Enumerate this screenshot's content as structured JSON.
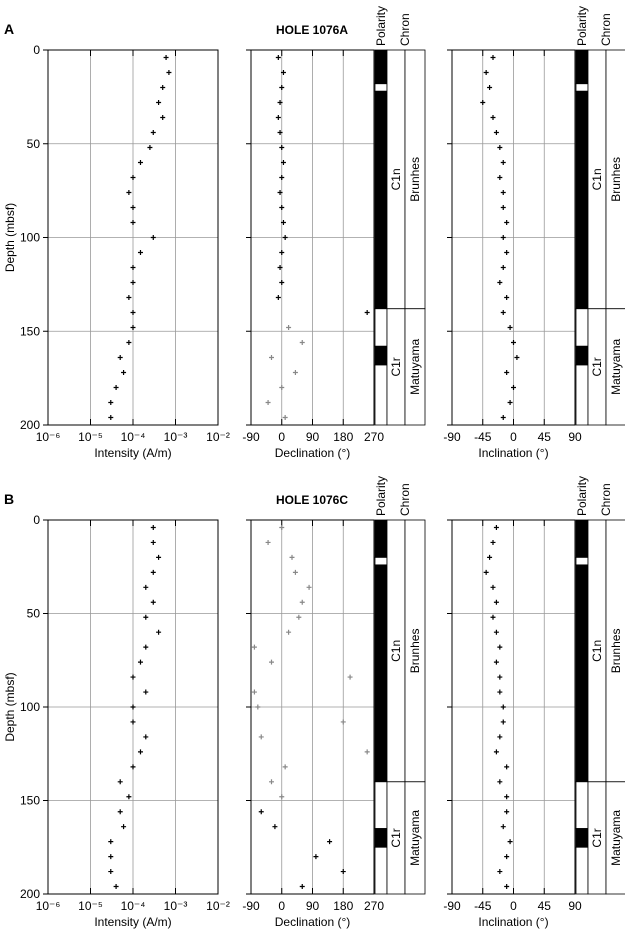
{
  "holes": [
    {
      "label": "A",
      "title": "HOLE 1076A",
      "column_headers": [
        "Polarity",
        "Chron"
      ],
      "polarity": [
        {
          "top": 0,
          "bottom": 18,
          "normal": true
        },
        {
          "top": 18,
          "bottom": 22,
          "normal": false
        },
        {
          "top": 22,
          "bottom": 138,
          "normal": true
        },
        {
          "top": 138,
          "bottom": 158,
          "normal": false
        },
        {
          "top": 158,
          "bottom": 168,
          "normal": true
        },
        {
          "top": 168,
          "bottom": 200,
          "normal": false
        }
      ],
      "chron": [
        {
          "top": 0,
          "bottom": 138,
          "chron": "C1n",
          "epoch": "Brunhes"
        },
        {
          "top": 138,
          "bottom": 200,
          "chron": "C1r",
          "epoch": "Matuyama"
        }
      ]
    },
    {
      "label": "B",
      "title": "HOLE 1076C",
      "column_headers": [
        "Polarity",
        "Chron"
      ],
      "polarity": [
        {
          "top": 0,
          "bottom": 20,
          "normal": true
        },
        {
          "top": 20,
          "bottom": 24,
          "normal": false
        },
        {
          "top": 24,
          "bottom": 140,
          "normal": true
        },
        {
          "top": 140,
          "bottom": 165,
          "normal": false
        },
        {
          "top": 165,
          "bottom": 175,
          "normal": true
        },
        {
          "top": 175,
          "bottom": 200,
          "normal": false
        }
      ],
      "chron": [
        {
          "top": 0,
          "bottom": 140,
          "chron": "C1n",
          "epoch": "Brunhes"
        },
        {
          "top": 140,
          "bottom": 200,
          "chron": "C1r",
          "epoch": "Matuyama"
        }
      ]
    }
  ],
  "chart_data": [
    {
      "type": "scatter",
      "xlabel": "Intensity (A/m)",
      "ylabel": "Depth (mbsf)",
      "log_x": true,
      "grid": true,
      "xlim": [
        1e-06,
        0.01
      ],
      "xticks": [
        {
          "value": 1e-06,
          "label": "10⁻⁶"
        },
        {
          "value": 1e-05,
          "label": "10⁻⁵"
        },
        {
          "value": 0.0001,
          "label": "10⁻⁴"
        },
        {
          "value": 0.001,
          "label": "10⁻³"
        },
        {
          "value": 0.01,
          "label": "10⁻²"
        }
      ],
      "ylim": [
        200,
        0
      ],
      "yticks": [
        0,
        50,
        100,
        150,
        200
      ],
      "series": [
        {
          "color": "#000000",
          "x": [
            0.0006,
            0.0007,
            0.0005,
            0.0004,
            0.0005,
            0.0003,
            0.00025,
            0.00015,
            0.0001,
            8e-05,
            0.0001,
            0.0001,
            0.0003,
            0.00015,
            0.0001,
            0.0001,
            8e-05,
            0.0001,
            0.0001,
            8e-05,
            5e-05,
            6e-05,
            4e-05,
            3e-05,
            3e-05
          ],
          "values": [
            4,
            12,
            20,
            28,
            36,
            44,
            52,
            60,
            68,
            76,
            84,
            92,
            100,
            108,
            116,
            124,
            132,
            140,
            148,
            156,
            164,
            172,
            180,
            188,
            196
          ]
        }
      ]
    },
    {
      "type": "scatter",
      "xlabel": "Declination (°)",
      "grid": true,
      "xlim": [
        -90,
        270
      ],
      "xticks": [
        -90,
        0,
        90,
        180,
        270
      ],
      "ylim": [
        200,
        0
      ],
      "yticks": [
        0,
        50,
        100,
        150,
        200
      ],
      "series": [
        {
          "color": "#000000",
          "x": [
            -10,
            5,
            0,
            -5,
            -10,
            -5,
            0,
            5,
            0,
            -5,
            0,
            5,
            10,
            0,
            -5,
            0,
            -10,
            250
          ],
          "values": [
            4,
            12,
            20,
            28,
            36,
            44,
            52,
            60,
            68,
            76,
            84,
            92,
            100,
            108,
            116,
            124,
            132,
            140
          ]
        },
        {
          "color": "#888888",
          "x": [
            20,
            60,
            -30,
            40,
            0,
            -40,
            10
          ],
          "values": [
            148,
            156,
            164,
            172,
            180,
            188,
            196
          ]
        }
      ]
    },
    {
      "type": "scatter",
      "xlabel": "Inclination (°)",
      "grid": true,
      "xlim": [
        -90,
        90
      ],
      "xticks": [
        -90,
        -45,
        0,
        45,
        90
      ],
      "ylim": [
        200,
        0
      ],
      "yticks": [
        0,
        50,
        100,
        150,
        200
      ],
      "series": [
        {
          "color": "#000000",
          "x": [
            -30,
            -40,
            -35,
            -45,
            -30,
            -25,
            -20,
            -15,
            -20,
            -15,
            -15,
            -10,
            -15,
            -10,
            -15,
            -20,
            -10,
            -15,
            -5,
            0,
            5,
            -10,
            0,
            -5,
            -15
          ],
          "values": [
            4,
            12,
            20,
            28,
            36,
            44,
            52,
            60,
            68,
            76,
            84,
            92,
            100,
            108,
            116,
            124,
            132,
            140,
            148,
            156,
            164,
            172,
            180,
            188,
            196
          ]
        }
      ]
    },
    {
      "type": "scatter",
      "xlabel": "Intensity (A/m)",
      "ylabel": "Depth (mbsf)",
      "log_x": true,
      "grid": true,
      "xlim": [
        1e-06,
        0.01
      ],
      "xticks": [
        {
          "value": 1e-06,
          "label": "10⁻⁶"
        },
        {
          "value": 1e-05,
          "label": "10⁻⁵"
        },
        {
          "value": 0.0001,
          "label": "10⁻⁴"
        },
        {
          "value": 0.001,
          "label": "10⁻³"
        },
        {
          "value": 0.01,
          "label": "10⁻²"
        }
      ],
      "ylim": [
        200,
        0
      ],
      "yticks": [
        0,
        50,
        100,
        150,
        200
      ],
      "series": [
        {
          "color": "#000000",
          "x": [
            0.0003,
            0.0003,
            0.0004,
            0.0003,
            0.0002,
            0.0003,
            0.0002,
            0.0004,
            0.0002,
            0.00015,
            0.0001,
            0.0002,
            0.0001,
            0.0001,
            0.0002,
            0.00015,
            0.0001,
            5e-05,
            8e-05,
            5e-05,
            6e-05,
            3e-05,
            3e-05,
            3e-05,
            4e-05
          ],
          "values": [
            4,
            12,
            20,
            28,
            36,
            44,
            52,
            60,
            68,
            76,
            84,
            92,
            100,
            108,
            116,
            124,
            132,
            140,
            148,
            156,
            164,
            172,
            180,
            188,
            196
          ]
        }
      ]
    },
    {
      "type": "scatter",
      "xlabel": "Declination (°)",
      "grid": true,
      "xlim": [
        -90,
        270
      ],
      "xticks": [
        -90,
        0,
        90,
        180,
        270
      ],
      "ylim": [
        200,
        0
      ],
      "yticks": [
        0,
        50,
        100,
        150,
        200
      ],
      "series": [
        {
          "color": "#888888",
          "x": [
            0,
            -40,
            30,
            40,
            80,
            60,
            50,
            20,
            -80,
            -30,
            200,
            -80,
            -70,
            180,
            -60,
            250,
            10,
            -30,
            0
          ],
          "values": [
            4,
            12,
            20,
            28,
            36,
            44,
            52,
            60,
            68,
            76,
            84,
            92,
            100,
            108,
            116,
            124,
            132,
            140,
            148
          ]
        },
        {
          "color": "#000000",
          "x": [
            -60,
            -20,
            140,
            100,
            180,
            60
          ],
          "values": [
            156,
            164,
            172,
            180,
            188,
            196
          ]
        }
      ]
    },
    {
      "type": "scatter",
      "xlabel": "Inclination (°)",
      "grid": true,
      "xlim": [
        -90,
        90
      ],
      "xticks": [
        -90,
        -45,
        0,
        45,
        90
      ],
      "ylim": [
        200,
        0
      ],
      "yticks": [
        0,
        50,
        100,
        150,
        200
      ],
      "series": [
        {
          "color": "#000000",
          "x": [
            -25,
            -30,
            -35,
            -40,
            -30,
            -25,
            -30,
            -25,
            -20,
            -25,
            -20,
            -20,
            -15,
            -15,
            -20,
            -25,
            -10,
            -20,
            -10,
            -10,
            -15,
            -5,
            -10,
            -20,
            -10
          ],
          "values": [
            4,
            12,
            20,
            28,
            36,
            44,
            52,
            60,
            68,
            76,
            84,
            92,
            100,
            108,
            116,
            124,
            132,
            140,
            148,
            156,
            164,
            172,
            180,
            188,
            196
          ]
        }
      ]
    }
  ]
}
